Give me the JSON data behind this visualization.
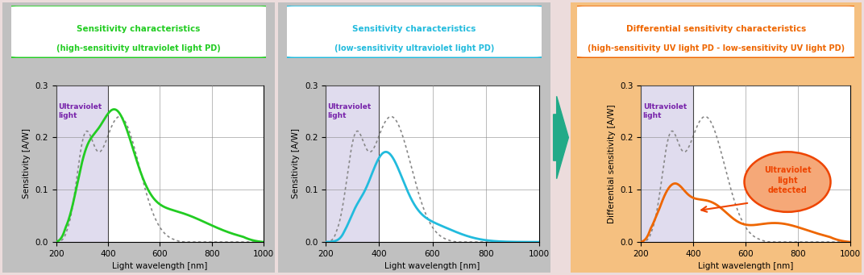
{
  "panel1_title_line1": "Sensitivity characteristics",
  "panel1_title_line2": "(high-sensitivity ultraviolet light PD)",
  "panel1_color": "#22cc22",
  "panel2_title_line1": "Sensitivity characteristics",
  "panel2_title_line2": "(low-sensitivity ultraviolet light PD)",
  "panel2_color": "#22bbdd",
  "panel3_title_line1": "Differential sensitivity characteristics",
  "panel3_title_line2": "(high-sensitivity UV light PD - low-sensitivity UV light PD)",
  "panel3_color": "#ee6600",
  "bg_panel12": "#c0c0c0",
  "bg_panel3": "#f5c080",
  "bg_overall_top": "#f0e0e0",
  "bg_overall_bottom": "#e8d0d8",
  "arrow_color": "#22aa88",
  "uv_region_color": "#c8c0e0",
  "uv_boundary": 400,
  "xlabel": "Light wavelength [nm]",
  "ylabel1": "Sensitivity [A/W]",
  "ylabel2": "Sensitivity [A/W]",
  "ylabel3": "Differential sensitivity [A/W]",
  "xlim": [
    200,
    1000
  ],
  "ylim": [
    0.0,
    0.3
  ],
  "yticks": [
    0.0,
    0.1,
    0.2,
    0.3
  ],
  "xticks": [
    200,
    400,
    600,
    800,
    1000
  ],
  "uv_label": "Ultraviolet\nlight",
  "uv_label_color": "#7722aa",
  "annotation_text": "Ultraviolet\nlight\ndetected",
  "annotation_color": "#ee4400",
  "annotation_fill": "#f5a878"
}
